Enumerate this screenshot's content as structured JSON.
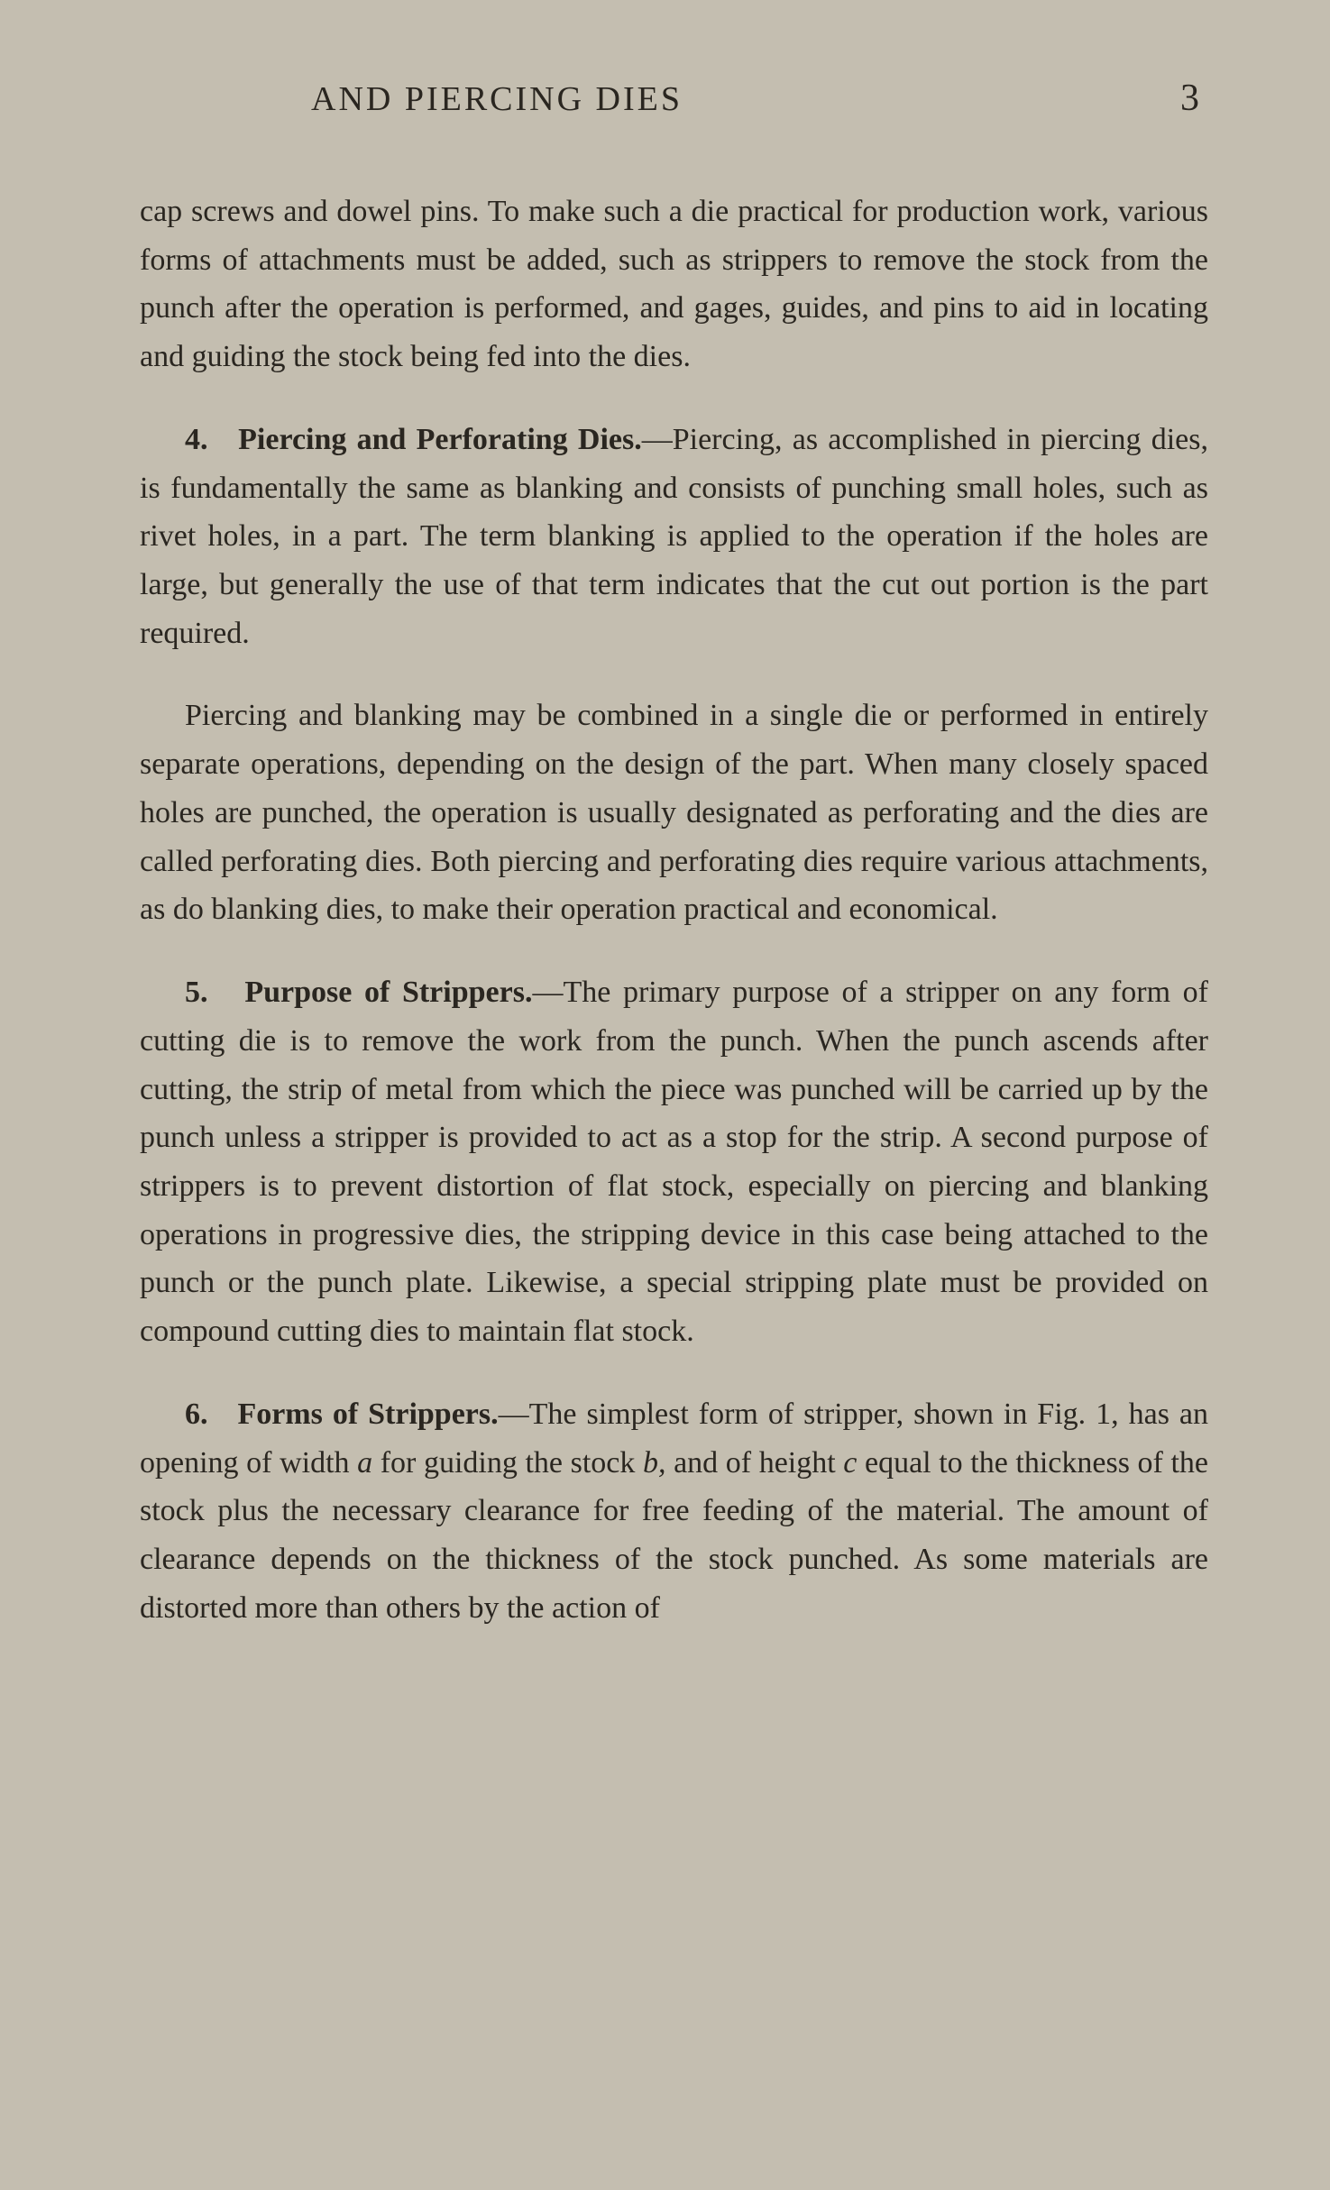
{
  "header": {
    "title": "AND PIERCING DIES",
    "pageNumber": "3"
  },
  "paragraphs": {
    "p1": {
      "text": "cap screws and dowel pins. To make such a die practical for production work, various forms of attachments must be added, such as strippers to remove the stock from the punch after the operation is performed, and gages, guides, and pins to aid in locating and guiding the stock being fed into the dies."
    },
    "p2": {
      "number": "4.",
      "title": "Piercing and Perforating Dies.",
      "text": "—Piercing, as accomplished in piercing dies, is fundamentally the same as blanking and consists of punching small holes, such as rivet holes, in a part. The term blanking is applied to the operation if the holes are large, but generally the use of that term indicates that the cut out portion is the part required."
    },
    "p3": {
      "text": "Piercing and blanking may be combined in a single die or performed in entirely separate operations, depending on the design of the part. When many closely spaced holes are punched, the operation is usually designated as perforating and the dies are called perforating dies. Both piercing and perforating dies require various attachments, as do blanking dies, to make their operation practical and economical."
    },
    "p4": {
      "number": "5.",
      "title": "Purpose of Strippers.",
      "text": "—The primary purpose of a stripper on any form of cutting die is to remove the work from the punch. When the punch ascends after cutting, the strip of metal from which the piece was punched will be carried up by the punch unless a stripper is provided to act as a stop for the strip. A second purpose of strippers is to prevent distortion of flat stock, especially on piercing and blanking operations in progressive dies, the stripping device in this case being attached to the punch or the punch plate. Likewise, a special stripping plate must be provided on compound cutting dies to maintain flat stock."
    },
    "p5": {
      "number": "6.",
      "title": "Forms of Strippers.",
      "textPart1": "—The simplest form of stripper, shown in Fig. 1, has an opening of width ",
      "italic1": "a",
      "textPart2": " for guiding the stock ",
      "italic2": "b,",
      "textPart3": " and of height ",
      "italic3": "c",
      "textPart4": " equal to the thickness of the stock plus the necessary clearance for free feeding of the material. The amount of clearance depends on the thickness of the stock punched. As some materials are distorted more than others by the action of"
    }
  },
  "styling": {
    "backgroundColor": "#c4beb0",
    "textColor": "#2a2620",
    "fontSize": 34,
    "lineHeight": 1.58,
    "headerFontSize": 38,
    "pageNumberFontSize": 42
  }
}
